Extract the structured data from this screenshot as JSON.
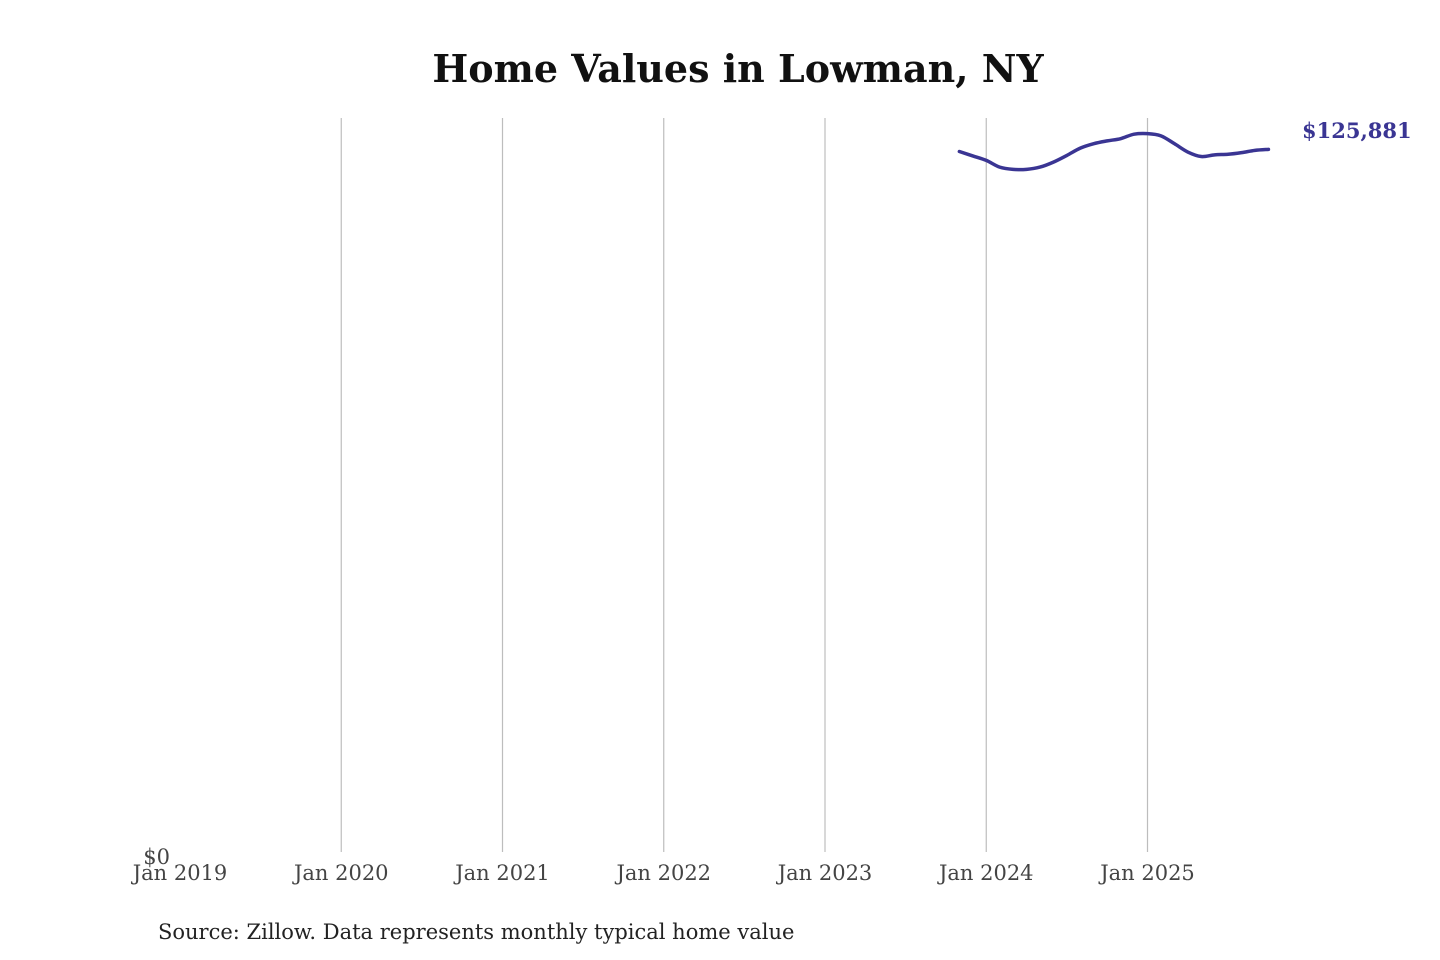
{
  "chart_data": {
    "type": "line",
    "title": "Home Values in Lowman, NY",
    "source": "Source: Zillow. Data represents monthly typical home value",
    "xlabel": "",
    "ylabel": "",
    "y_tick_label": "$0",
    "x_ticks": [
      "Jan 2019",
      "Jan 2020",
      "Jan 2021",
      "Jan 2022",
      "Jan 2023",
      "Jan 2024",
      "Jan 2025"
    ],
    "x_range": [
      "2019-01",
      "2025-11"
    ],
    "ylim": [
      0,
      131500
    ],
    "grid": "vertical",
    "line_color": "#3a3593",
    "end_label": "$125,881",
    "series": [
      {
        "x": [
          "2023-11",
          "2023-12",
          "2024-01",
          "2024-02",
          "2024-03",
          "2024-04",
          "2024-05",
          "2024-06",
          "2024-07",
          "2024-08",
          "2024-09",
          "2024-10",
          "2024-11",
          "2024-12",
          "2025-01",
          "2025-02",
          "2025-03",
          "2025-04",
          "2025-05",
          "2025-06",
          "2025-07",
          "2025-08",
          "2025-09",
          "2025-10"
        ],
        "values": [
          125500,
          124700,
          123900,
          122700,
          122300,
          122300,
          122700,
          123600,
          124800,
          126100,
          126900,
          127400,
          127800,
          128600,
          128700,
          128300,
          126900,
          125400,
          124600,
          124900,
          125000,
          125300,
          125700,
          125881
        ]
      }
    ]
  }
}
